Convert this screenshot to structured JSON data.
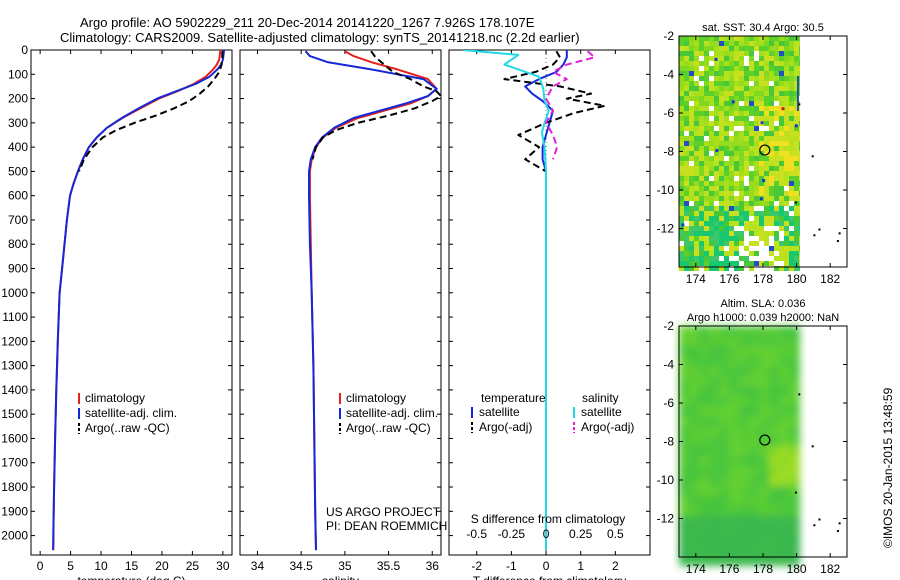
{
  "header": {
    "line1": "Argo profile: AO 5902229_211 20-Dec-2014 20141220_1267 7.926S 178.107E",
    "line2": "Climatology: CARS2009. Satellite-adjusted climatology: synTS_20141218.nc (2.2d earlier)"
  },
  "credit": {
    "project": "US ARGO PROJECT",
    "pi": "PI: DEAN ROEMMICH",
    "stamp": "©IMOS 20-Jan-2015 13:48:59"
  },
  "colors": {
    "climatology": "#e8201a",
    "satellite": "#1428d8",
    "argo": "#000000",
    "sal_satellite": "#22d8e6",
    "sal_argo": "#e020d8"
  },
  "chart_data": [
    {
      "type": "line",
      "id": "temperature",
      "xlabel": "temperature (deg C)",
      "xlim": [
        -1.5,
        31.5
      ],
      "ylim": [
        2080,
        0
      ],
      "xticks": [
        0,
        5,
        10,
        15,
        20,
        25,
        30
      ],
      "yticks": [
        0,
        100,
        200,
        300,
        400,
        500,
        600,
        700,
        800,
        900,
        1000,
        1100,
        1200,
        1300,
        1400,
        1500,
        1600,
        1700,
        1800,
        1900,
        2000
      ],
      "legend": [
        "climatology",
        "satellite-adj. clim.",
        "Argo(..raw -QC)"
      ],
      "series": [
        {
          "name": "climatology",
          "style": "solid",
          "color_key": "climatology",
          "x": [
            29.6,
            29.5,
            29.4,
            29.0,
            28.4,
            27.2,
            25.2,
            22.5,
            19.5,
            16.5,
            13.5,
            11.0,
            9.3,
            8.0,
            7.0,
            6.2,
            5.5,
            4.9,
            4.4,
            4.0,
            3.6,
            3.2,
            2.9,
            2.65,
            2.45,
            2.3,
            2.2,
            2.15
          ],
          "y": [
            0,
            20,
            40,
            60,
            80,
            110,
            140,
            170,
            200,
            240,
            280,
            320,
            360,
            400,
            450,
            500,
            550,
            600,
            700,
            800,
            900,
            1000,
            1200,
            1400,
            1600,
            1800,
            1950,
            2060
          ]
        },
        {
          "name": "satellite-adj. clim.",
          "style": "solid",
          "color_key": "satellite",
          "x": [
            30.2,
            30.1,
            30.0,
            29.7,
            29.1,
            27.8,
            25.5,
            22.3,
            19.2,
            16.2,
            13.4,
            11.0,
            9.3,
            8.0,
            7.0,
            6.2,
            5.5,
            4.9,
            4.4,
            4.0,
            3.6,
            3.2,
            2.9,
            2.65,
            2.45,
            2.3,
            2.2,
            2.15
          ],
          "y": [
            0,
            20,
            40,
            60,
            80,
            110,
            140,
            170,
            200,
            240,
            280,
            320,
            360,
            400,
            450,
            500,
            550,
            600,
            700,
            800,
            900,
            1000,
            1200,
            1400,
            1600,
            1800,
            1950,
            2060
          ]
        },
        {
          "name": "Argo(..raw -QC)",
          "style": "dashed",
          "color_key": "argo",
          "x": [
            29.9,
            29.9,
            29.8,
            29.4,
            28.6,
            27.6,
            26.2,
            24.5,
            22.0,
            19.0,
            15.5,
            12.5,
            10.3,
            8.6,
            7.2,
            6.4
          ],
          "y": [
            5,
            30,
            60,
            90,
            120,
            150,
            180,
            210,
            240,
            270,
            300,
            330,
            360,
            400,
            450,
            500
          ]
        }
      ]
    },
    {
      "type": "line",
      "id": "salinity",
      "xlabel": "salinity",
      "xlim": [
        33.8,
        36.1
      ],
      "ylim": [
        2080,
        0
      ],
      "xticks": [
        34,
        34.5,
        35,
        35.5,
        36
      ],
      "legend": [
        "climatology",
        "satellite-adj. clim.",
        "Argo(..raw -QC)"
      ],
      "series": [
        {
          "name": "climatology",
          "style": "solid",
          "color_key": "climatology",
          "x": [
            35.0,
            35.1,
            35.3,
            35.6,
            35.95,
            36.05,
            35.95,
            35.75,
            35.45,
            35.15,
            34.9,
            34.75,
            34.67,
            34.62,
            34.6,
            34.6,
            34.61,
            34.62,
            34.64,
            34.65,
            34.66,
            34.67
          ],
          "y": [
            5,
            25,
            50,
            80,
            120,
            160,
            190,
            220,
            250,
            280,
            320,
            360,
            400,
            450,
            500,
            600,
            800,
            1000,
            1300,
            1600,
            1900,
            2060
          ]
        },
        {
          "name": "satellite-adj. clim.",
          "style": "solid",
          "color_key": "satellite",
          "x": [
            34.55,
            34.6,
            34.8,
            35.3,
            35.9,
            36.05,
            35.95,
            35.7,
            35.4,
            35.1,
            34.88,
            34.74,
            34.66,
            34.61,
            34.59,
            34.59,
            34.6,
            34.62,
            34.64,
            34.65,
            34.66,
            34.67
          ],
          "y": [
            5,
            25,
            50,
            80,
            120,
            160,
            190,
            220,
            250,
            280,
            320,
            360,
            400,
            450,
            500,
            600,
            800,
            1000,
            1300,
            1600,
            1900,
            2060
          ]
        },
        {
          "name": "Argo(..raw -QC)",
          "style": "dashed",
          "color_key": "argo",
          "x": [
            35.3,
            35.35,
            35.45,
            35.55,
            35.75,
            35.9,
            36.05,
            36.1,
            36.0,
            35.8,
            35.5,
            35.15,
            34.9,
            34.75,
            34.67,
            34.63
          ],
          "y": [
            5,
            30,
            60,
            90,
            120,
            150,
            170,
            190,
            210,
            240,
            270,
            300,
            330,
            360,
            400,
            450
          ]
        }
      ]
    },
    {
      "type": "line",
      "id": "difference",
      "xlabel": "T difference from climatology",
      "x2label": "S difference from climatology",
      "xlim": [
        -2.8,
        3.0
      ],
      "ylim": [
        2080,
        0
      ],
      "xticks": [
        -2,
        -1,
        0,
        1,
        2
      ],
      "x2lim": [
        -0.7,
        0.75
      ],
      "x2ticks": [
        -0.5,
        -0.25,
        0,
        0.25,
        0.5
      ],
      "x2ticklabels": [
        "-0.5",
        "-0.25",
        "0",
        "0.25",
        "0.5"
      ],
      "legend_groups": {
        "temperature": {
          "title": "temperature",
          "items": [
            "satellite",
            "Argo(-adj)"
          ]
        },
        "salinity": {
          "title": "salinity",
          "items": [
            "satellite",
            "Argo(-adj)"
          ]
        }
      },
      "series": [
        {
          "name": "temperature satellite",
          "group": "temperature",
          "style": "solid",
          "color_key": "satellite",
          "axis": "T",
          "x": [
            0.6,
            0.6,
            0.5,
            0.3,
            -0.2,
            -0.6,
            -0.4,
            -0.1,
            0.2,
            0.1,
            0.0,
            -0.1,
            -0.1,
            0.0,
            0.0,
            0.0,
            0.0,
            0.0,
            0.0,
            0.0,
            0.0
          ],
          "y": [
            0,
            30,
            60,
            90,
            120,
            150,
            180,
            210,
            250,
            300,
            350,
            400,
            450,
            500,
            600,
            700,
            1000,
            1300,
            1600,
            1900,
            2060
          ]
        },
        {
          "name": "temperature Argo(-adj)",
          "group": "temperature",
          "style": "dashed",
          "color_key": "argo",
          "axis": "T",
          "x": [
            0.3,
            0.4,
            0.2,
            -0.3,
            -1.2,
            0.4,
            1.3,
            0.6,
            1.7,
            0.8,
            0.0,
            -0.8,
            -0.2,
            -0.6,
            0.0
          ],
          "y": [
            5,
            30,
            60,
            90,
            120,
            150,
            180,
            200,
            230,
            260,
            300,
            350,
            400,
            450,
            500
          ]
        },
        {
          "name": "salinity satellite",
          "group": "salinity",
          "style": "solid",
          "color_key": "sal_satellite",
          "axis": "S",
          "x": [
            -0.6,
            -0.2,
            -0.3,
            -0.05,
            -0.02,
            -0.01,
            0.02,
            -0.01,
            -0.03,
            -0.01,
            0.0,
            0.0,
            0.0,
            0.0,
            0.0,
            0.0,
            0.0
          ],
          "y": [
            0,
            20,
            60,
            110,
            160,
            210,
            250,
            300,
            340,
            400,
            500,
            700,
            1000,
            1300,
            1600,
            1900,
            2060
          ]
        },
        {
          "name": "salinity Argo(-adj)",
          "group": "salinity",
          "style": "dashed",
          "color_key": "sal_argo",
          "axis": "S",
          "x": [
            0.3,
            0.35,
            0.15,
            0.05,
            0.15,
            0.05,
            0.0,
            0.05,
            0.0,
            0.05,
            0.08,
            0.05
          ],
          "y": [
            5,
            30,
            60,
            90,
            120,
            150,
            200,
            250,
            300,
            350,
            400,
            450
          ]
        }
      ]
    },
    {
      "type": "heatmap",
      "id": "sst_map",
      "title": "sat. SST: 30.4  Argo: 30.5",
      "xlim": [
        173,
        183
      ],
      "ylim": [
        -14,
        -2
      ],
      "xticks": [
        174,
        176,
        178,
        180,
        182
      ],
      "yticks": [
        -2,
        -4,
        -6,
        -8,
        -10,
        -12
      ],
      "marker": {
        "lon": 178.107,
        "lat": -7.926
      }
    },
    {
      "type": "heatmap",
      "id": "sla_map",
      "title": "Altim. SLA: 0.036",
      "subtitle": "Argo h1000: 0.039 h2000: NaN",
      "xlim": [
        173,
        183
      ],
      "ylim": [
        -14,
        -2
      ],
      "xticks": [
        174,
        176,
        178,
        180,
        182
      ],
      "yticks": [
        -2,
        -4,
        -6,
        -8,
        -10,
        -12
      ],
      "marker": {
        "lon": 178.107,
        "lat": -7.926
      }
    }
  ]
}
